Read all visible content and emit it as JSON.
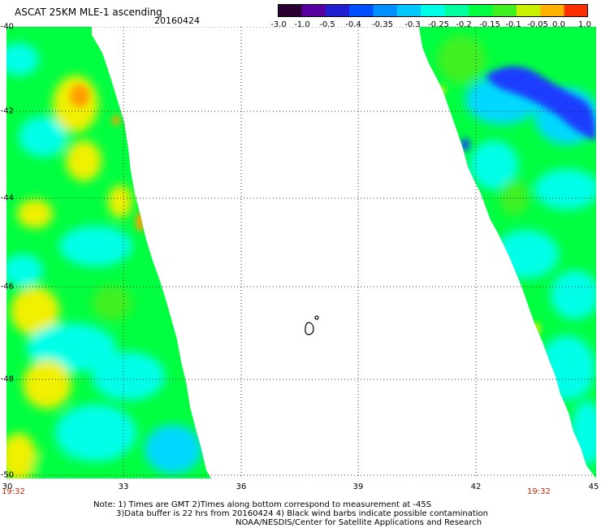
{
  "header": {
    "title": "ASCAT 25KM MLE-1 ascending",
    "date": "20160424"
  },
  "colorbar": {
    "ticks": [
      "-3.0",
      "-1.0",
      "-0.5",
      "-0.4",
      "-0.35",
      "-0.3",
      "-0.25",
      "-0.2",
      "-0.15",
      "-0.1",
      "-0.05",
      "0.0",
      "1.0"
    ],
    "colors": [
      "#2a0033",
      "#5a00a0",
      "#2020d0",
      "#0050ff",
      "#0090ff",
      "#00c8ff",
      "#00ffe8",
      "#00ffa0",
      "#00ff40",
      "#40f020",
      "#c8f000",
      "#ffb000",
      "#ff3000"
    ]
  },
  "axes": {
    "y_labels": [
      "-40",
      "-42",
      "-44",
      "-46",
      "-48",
      "-50"
    ],
    "x_labels": [
      "30",
      "33",
      "36",
      "39",
      "42",
      "45"
    ],
    "lat_range": [
      -50,
      -40
    ],
    "lon_range": [
      30,
      45
    ]
  },
  "time_labels": {
    "left": "19:32",
    "right": "19:32"
  },
  "notes": {
    "line1": "Note: 1) Times are GMT 2)Times along bottom correspond to measurement at -45S",
    "line2": "3)Data buffer is 22 hrs from 20160424 4) Black wind barbs indicate possible contamination",
    "line3": "NOAA/NESDIS/Center for Satellite Applications and Research"
  },
  "map_colors": {
    "cyan": "#00ffe8",
    "green": "#00ff40",
    "lime": "#40f020",
    "yellow": "#f0f000",
    "orange": "#ffa000",
    "blue": "#1a3cff",
    "aqua": "#00d8ff"
  }
}
